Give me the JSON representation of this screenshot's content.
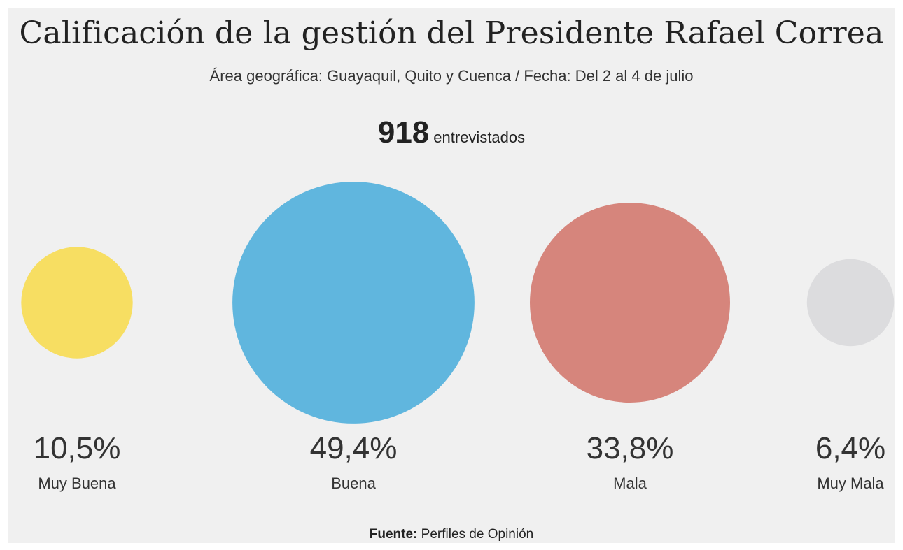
{
  "chart_data": {
    "type": "bubble",
    "title": "Calificación de la gestión del Presidente Rafael Correa",
    "subtitle": "Área geográfica: Guayaquil, Quito y Cuenca / Fecha: Del 2 al 4 de julio",
    "total": {
      "value": "918",
      "unit": "entrevistados"
    },
    "categories": [
      "Muy Buena",
      "Buena",
      "Mala",
      "Muy Mala"
    ],
    "values": [
      10.5,
      49.4,
      33.8,
      6.4
    ],
    "value_labels": [
      "10,5%",
      "49,4%",
      "33,8%",
      "6,4%"
    ],
    "colors": [
      "#f7de62",
      "#60b6de",
      "#d6857c",
      "#dcdcde"
    ],
    "source_label": "Fuente:",
    "source_text": "Perfiles de Opinión"
  }
}
